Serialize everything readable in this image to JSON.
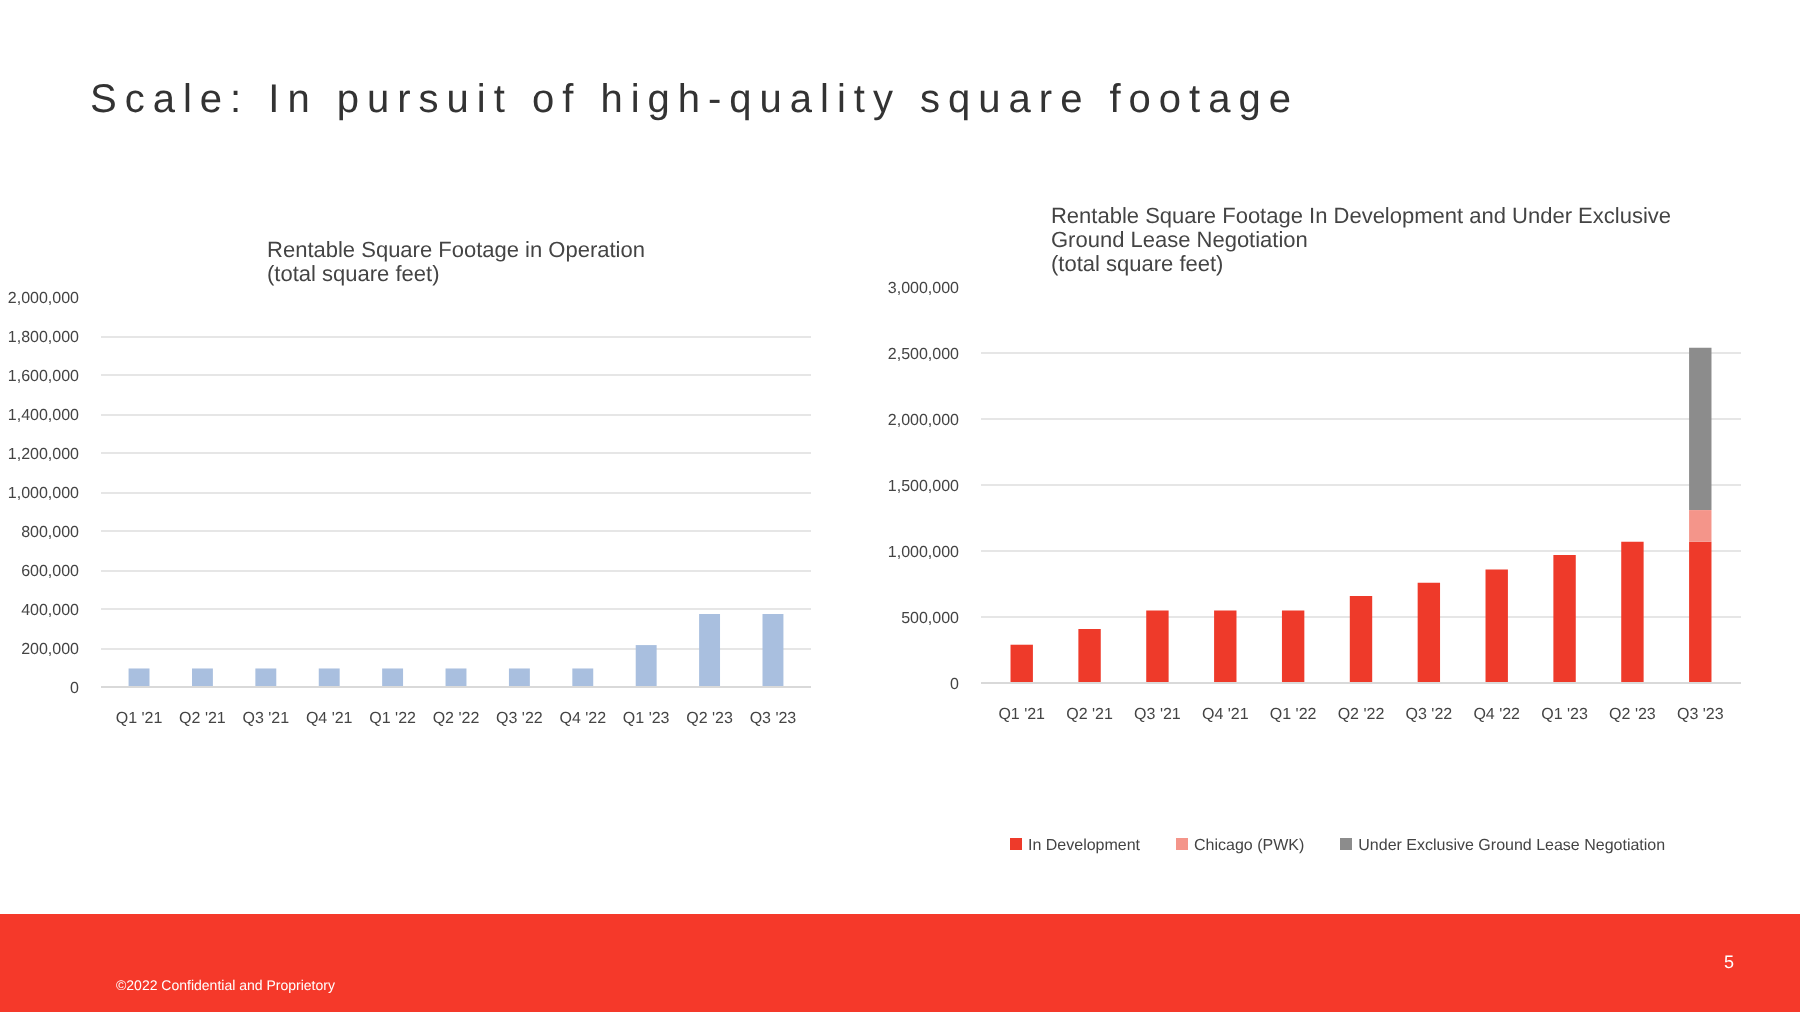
{
  "chart_data": [
    {
      "type": "bar",
      "title": "Rentable Square Footage in Operation\n(total square feet)",
      "categories": [
        "Q1 '21",
        "Q2 '21",
        "Q3 '21",
        "Q4 '21",
        "Q1 '22",
        "Q2 '22",
        "Q3 '22",
        "Q4 '22",
        "Q1 '23",
        "Q2 '23",
        "Q3 '23"
      ],
      "values": [
        95000,
        95000,
        95000,
        95000,
        95000,
        95000,
        95000,
        95000,
        215000,
        375000,
        375000
      ],
      "color": "#a9bfdf",
      "ylim": [
        0,
        2000000
      ],
      "yticks": [
        0,
        {
          "value": 200000,
          "label": "200,000"
        },
        {
          "value": 400000,
          "label": "400,000"
        },
        {
          "value": 600000,
          "label": "600,000"
        },
        {
          "value": 800000,
          "label": "800,000"
        },
        {
          "value": 1000000,
          "label": "1,000,000"
        },
        {
          "value": 1200000,
          "label": "1,200,000"
        },
        {
          "value": 1400000,
          "label": "1,400,000"
        },
        {
          "value": 1600000,
          "label": "1,600,000"
        },
        {
          "value": 1800000,
          "label": "1,800,000"
        },
        {
          "value": 2000000,
          "label": "2,000,000"
        }
      ],
      "grid": "y",
      "annotations": [
        "Scale: In pursuit of high-quality square footage",
        "©2022 Confidential and Proprietory",
        "5"
      ]
    },
    {
      "type": "bar",
      "title": "Rentable Square Footage In Development and Under Exclusive\nGround Lease Negotiation\n(total square feet)",
      "categories": [
        "Q1 '21",
        "Q2 '21",
        "Q3 '21",
        "Q4 '21",
        "Q1 '22",
        "Q2 '22",
        "Q3 '22",
        "Q4 '22",
        "Q1 '23",
        "Q2 '23",
        "Q3 '23"
      ],
      "stacked": true,
      "series": [
        {
          "name": "In Development",
          "color": "#ee3a2a",
          "values": [
            290000,
            410000,
            550000,
            550000,
            550000,
            660000,
            760000,
            860000,
            970000,
            1070000,
            1070000
          ]
        },
        {
          "name": "Chicago (PWK)",
          "color": "#f4958a",
          "values": [
            null,
            null,
            null,
            null,
            null,
            null,
            null,
            null,
            null,
            null,
            240000
          ]
        },
        {
          "name": "Under Exclusive Ground Lease Negotiation",
          "color": "#8c8c8c",
          "values": [
            null,
            null,
            null,
            null,
            null,
            null,
            null,
            null,
            null,
            null,
            1230000
          ]
        }
      ],
      "ylim": [
        0,
        3000000
      ],
      "yticks": [
        0,
        {
          "value": 500000,
          "label": "500,000"
        },
        {
          "value": 1000000,
          "label": "1,000,000"
        },
        {
          "value": 1500000,
          "label": "1,500,000"
        },
        {
          "value": 2000000,
          "label": "2,000,000"
        },
        {
          "value": 2500000,
          "label": "2,500,000"
        },
        {
          "value": 3000000,
          "label": "3,000,000"
        }
      ],
      "grid": "y",
      "legend": "bottom"
    }
  ]
}
